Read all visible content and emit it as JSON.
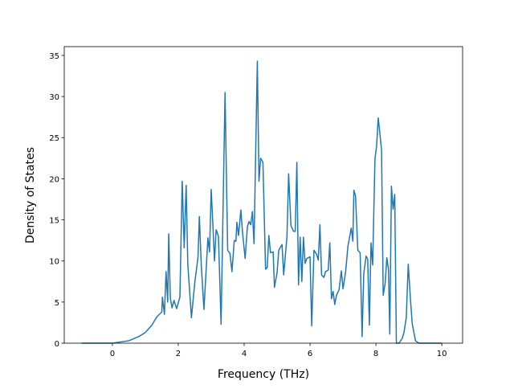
{
  "chart_data": {
    "type": "line",
    "xlabel": "Frequency (THz)",
    "ylabel": "Density of States",
    "x": [
      -0.93,
      0,
      0.5,
      0.8,
      1.0,
      1.2,
      1.35,
      1.5,
      1.52,
      1.58,
      1.63,
      1.68,
      1.71,
      1.76,
      1.81,
      1.87,
      1.95,
      2.05,
      2.12,
      2.18,
      2.24,
      2.29,
      2.4,
      2.5,
      2.6,
      2.64,
      2.7,
      2.78,
      2.9,
      2.95,
      3.0,
      3.05,
      3.1,
      3.15,
      3.22,
      3.3,
      3.42,
      3.5,
      3.57,
      3.63,
      3.7,
      3.75,
      3.78,
      3.83,
      3.9,
      3.95,
      4.03,
      4.1,
      4.15,
      4.2,
      4.25,
      4.3,
      4.4,
      4.45,
      4.5,
      4.57,
      4.65,
      4.7,
      4.75,
      4.8,
      4.88,
      4.92,
      5.0,
      5.05,
      5.15,
      5.2,
      5.3,
      5.35,
      5.42,
      5.5,
      5.55,
      5.6,
      5.65,
      5.7,
      5.75,
      5.8,
      5.85,
      5.9,
      6.0,
      6.05,
      6.12,
      6.2,
      6.25,
      6.3,
      6.35,
      6.42,
      6.47,
      6.55,
      6.6,
      6.65,
      6.7,
      6.75,
      6.8,
      6.88,
      6.95,
      7.0,
      7.08,
      7.15,
      7.25,
      7.3,
      7.33,
      7.38,
      7.45,
      7.52,
      7.58,
      7.63,
      7.7,
      7.75,
      7.8,
      7.85,
      7.9,
      7.97,
      8.02,
      8.07,
      8.12,
      8.17,
      8.22,
      8.28,
      8.33,
      8.38,
      8.42,
      8.47,
      8.52,
      8.57,
      8.62,
      8.7,
      8.8,
      8.85,
      8.92,
      8.98,
      9.05,
      9.1,
      9.2,
      9.3,
      10.0
    ],
    "series": [
      {
        "name": "DOS",
        "color": "#1f77b4",
        "values": [
          0,
          0,
          0.3,
          0.8,
          1.3,
          2.2,
          3.2,
          3.8,
          5.6,
          3.5,
          8.7,
          5.0,
          13.3,
          5.5,
          4.3,
          5.2,
          4.2,
          5.6,
          19.7,
          11.6,
          19.2,
          9.6,
          3.1,
          7.3,
          10.5,
          15.4,
          9.4,
          4.1,
          12.8,
          11.1,
          18.7,
          14.5,
          10.0,
          13.8,
          13.0,
          2.3,
          30.5,
          11.3,
          10.9,
          8.7,
          12.5,
          12.4,
          14.7,
          13.1,
          16.2,
          13.5,
          10.3,
          14.2,
          14.8,
          14.4,
          16.0,
          12.1,
          34.3,
          19.7,
          22.5,
          22.0,
          9.0,
          9.2,
          13.1,
          11.0,
          11.1,
          6.8,
          8.6,
          11.3,
          12.0,
          8.3,
          13.0,
          20.6,
          14.3,
          13.6,
          13.6,
          22.0,
          7.1,
          12.9,
          7.5,
          12.9,
          9.7,
          10.3,
          10.5,
          2.1,
          11.3,
          10.8,
          10.1,
          14.4,
          8.3,
          8.0,
          8.7,
          8.9,
          12.2,
          5.4,
          6.3,
          4.7,
          5.8,
          6.5,
          8.8,
          6.6,
          8.7,
          11.8,
          14.0,
          12.4,
          18.6,
          17.9,
          11.3,
          11.0,
          0.8,
          8.4,
          10.6,
          10.2,
          2.2,
          12.2,
          9.5,
          22.4,
          24.0,
          27.4,
          25.5,
          23.5,
          5.8,
          7.3,
          10.4,
          9.0,
          1.1,
          19.1,
          16.3,
          18.1,
          0.0,
          0.0,
          0.6,
          1.3,
          3.1,
          9.6,
          5.2,
          2.4,
          0.3,
          0,
          0
        ]
      }
    ],
    "xlim": [
      -1.46,
      10.63
    ],
    "ylim": [
      0,
      36.07
    ],
    "xticks": [
      0,
      2,
      4,
      6,
      8,
      10
    ],
    "yticks": [
      0,
      5,
      10,
      15,
      20,
      25,
      30,
      35
    ]
  }
}
